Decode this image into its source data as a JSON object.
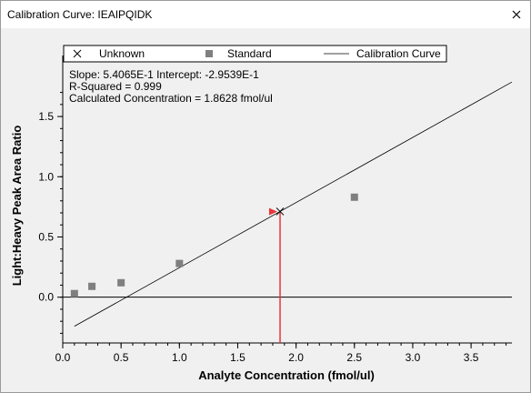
{
  "window": {
    "title": "Calibration Curve: IEAIPQIDK"
  },
  "colors": {
    "standard": "#7f7f7f",
    "unknown": "#000000",
    "curve": "#000000",
    "highlight": "#e8343a",
    "plot_bg": "#f0f0f0"
  },
  "legend": {
    "unknown": "Unknown",
    "standard": "Standard",
    "curve": "Calibration Curve"
  },
  "stats": {
    "line1": "Slope: 5.4065E-1 Intercept: -2.9539E-1",
    "line2": "R-Squared = 0.999",
    "line3": "Calculated Concentration = 1.8628 fmol/ul"
  },
  "chart_data": {
    "type": "scatter",
    "xlabel": "Analyte Concentration (fmol/ul)",
    "ylabel": "Light:Heavy Peak Area Ratio",
    "xlim": [
      0,
      3.85
    ],
    "ylim": [
      -0.38,
      1.78
    ],
    "x_ticks": [
      0.0,
      0.5,
      1.0,
      1.5,
      2.0,
      2.5,
      3.0,
      3.5
    ],
    "x_tick_labels": [
      "0.0",
      "0.5",
      "1.0",
      "1.5",
      "2.0",
      "2.5",
      "3.0",
      "3.5"
    ],
    "y_ticks": [
      0.0,
      0.5,
      1.0,
      1.5
    ],
    "y_tick_labels": [
      "0.0",
      "0.5",
      "1.0",
      "1.5"
    ],
    "y_minor_step": 0.1,
    "x_minor_step": 0.1,
    "series": [
      {
        "name": "Standard",
        "marker": "square",
        "x": [
          0.1,
          0.25,
          0.5,
          1.0,
          2.5
        ],
        "y": [
          0.03,
          0.09,
          0.12,
          0.28,
          0.83
        ]
      },
      {
        "name": "Unknown",
        "marker": "x",
        "x": [
          1.8628
        ],
        "y": [
          0.7117
        ]
      }
    ],
    "calibration_curve": {
      "name": "Calibration Curve",
      "slope": 0.54065,
      "intercept": -0.29539,
      "x_range": [
        0.1,
        3.85
      ]
    },
    "selected_point": {
      "x": 1.8,
      "y": 0.71
    },
    "grid": false,
    "legend_position": "top"
  }
}
